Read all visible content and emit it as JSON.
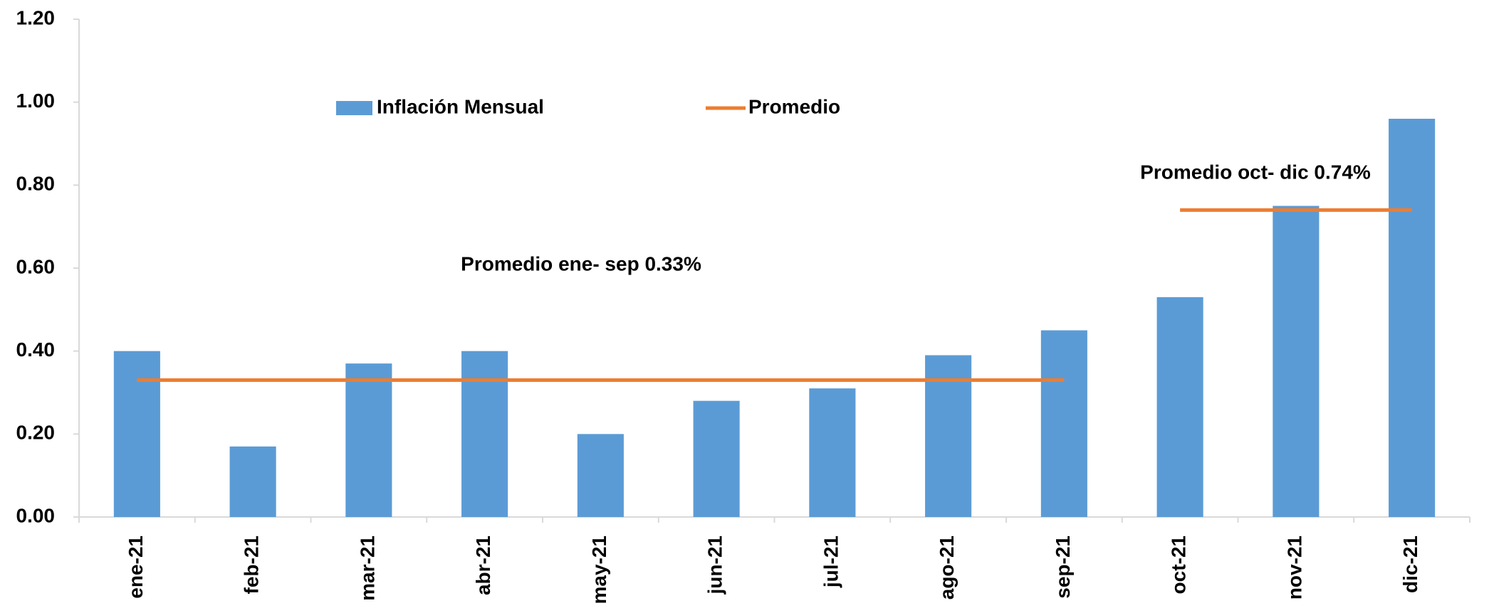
{
  "chart_data": {
    "type": "bar",
    "categories": [
      "ene-21",
      "feb-21",
      "mar-21",
      "abr-21",
      "may-21",
      "jun-21",
      "jul-21",
      "ago-21",
      "sep-21",
      "oct-21",
      "nov-21",
      "dic-21"
    ],
    "series": [
      {
        "name": "Inflación Mensual",
        "type": "bar",
        "color": "#5b9bd5",
        "values": [
          0.4,
          0.17,
          0.37,
          0.4,
          0.2,
          0.28,
          0.31,
          0.39,
          0.45,
          0.53,
          0.75,
          0.96
        ]
      },
      {
        "name": "Promedio",
        "type": "line",
        "color": "#ed7d31",
        "values": [
          0.33,
          0.33,
          0.33,
          0.33,
          0.33,
          0.33,
          0.33,
          0.33,
          0.33,
          0.74,
          0.74,
          0.74
        ]
      }
    ],
    "annotations": [
      "Promedio ene- sep 0.33%",
      "Promedio oct- dic 0.74%"
    ],
    "ylim": [
      0,
      1.2
    ],
    "yticks": [
      {
        "value": 0,
        "label": "0.00"
      },
      {
        "value": 0.2,
        "label": "0.20"
      },
      {
        "value": 0.4,
        "label": "0.40"
      },
      {
        "value": 0.6,
        "label": "0.60"
      },
      {
        "value": 0.8,
        "label": "0.80"
      },
      {
        "value": 1.0,
        "label": "1.00"
      },
      {
        "value": 1.2,
        "label": "1.20"
      }
    ],
    "grid": false
  }
}
